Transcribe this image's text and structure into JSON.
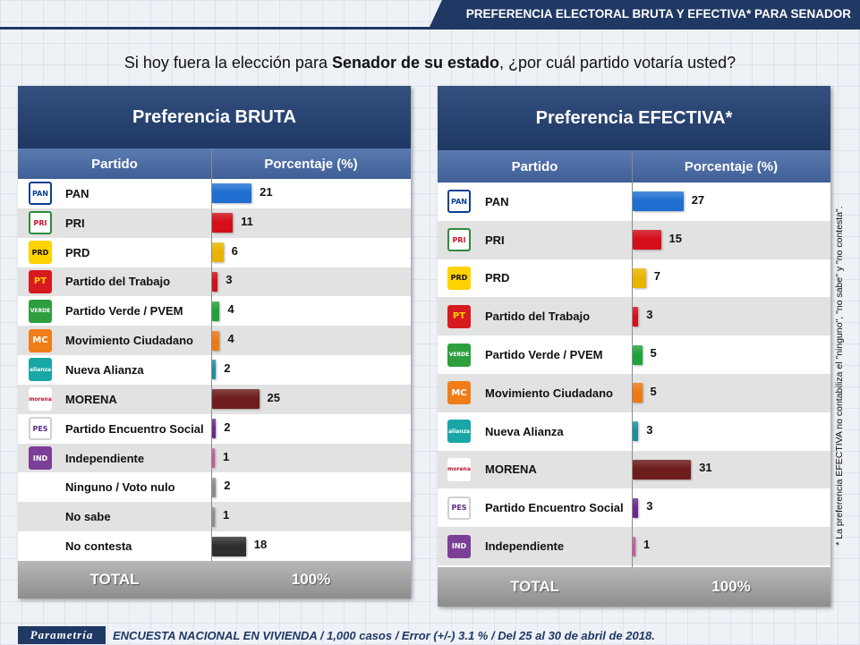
{
  "header": {
    "title": "PREFERENCIA ELECTORAL BRUTA Y EFECTIVA* PARA SENADOR"
  },
  "question": {
    "before": "Si hoy fuera la elección para ",
    "bold": "Senador de su estado",
    "after": ", ¿por cuál partido votaría usted?"
  },
  "columns": {
    "party": "Partido",
    "percent": "Porcentaje (%)"
  },
  "total": {
    "label": "TOTAL",
    "value": "100%"
  },
  "logos": {
    "PAN": {
      "text": "PAN",
      "bg": "#ffffff",
      "fg": "#0b3f91",
      "border": "#0b3f91"
    },
    "PRI": {
      "text": "PRI",
      "bg": "#ffffff",
      "fg": "#ce1126",
      "border": "#2e8b3a"
    },
    "PRD": {
      "text": "PRD",
      "bg": "#ffd200",
      "fg": "#111111",
      "border": "#ffd200"
    },
    "PT": {
      "text": "PT",
      "bg": "#d71920",
      "fg": "#ffd200",
      "border": "#d71920"
    },
    "PVEM": {
      "text": "VERDE",
      "bg": "#2e9e3f",
      "fg": "#ffffff",
      "border": "#2e9e3f"
    },
    "MC": {
      "text": "MC",
      "bg": "#f07d1a",
      "fg": "#ffffff",
      "border": "#f07d1a"
    },
    "NA": {
      "text": "alianza",
      "bg": "#1aa6a6",
      "fg": "#ffffff",
      "border": "#1aa6a6"
    },
    "MORENA": {
      "text": "morena",
      "bg": "#ffffff",
      "fg": "#b5142a",
      "border": "#ffffff"
    },
    "PES": {
      "text": "PES",
      "bg": "#ffffff",
      "fg": "#5b2c83",
      "border": "#d0d0d0"
    },
    "IND": {
      "text": "IND",
      "bg": "#7b3f98",
      "fg": "#ffffff",
      "border": "#7b3f98"
    }
  },
  "chart_data": [
    {
      "type": "bar",
      "title": "Preferencia BRUTA",
      "xlabel": "Partido",
      "ylabel": "Porcentaje (%)",
      "categories": [
        "PAN",
        "PRI",
        "PRD",
        "Partido del Trabajo",
        "Partido Verde / PVEM",
        "Movimiento Ciudadano",
        "Nueva Alianza",
        "MORENA",
        "Partido Encuentro Social",
        "Independiente",
        "Ninguno / Voto nulo",
        "No sabe",
        "No contesta"
      ],
      "logos": [
        "PAN",
        "PRI",
        "PRD",
        "PT",
        "PVEM",
        "MC",
        "NA",
        "MORENA",
        "PES",
        "IND",
        "",
        "",
        ""
      ],
      "values": [
        21,
        11,
        6,
        3,
        4,
        4,
        2,
        25,
        2,
        1,
        2,
        1,
        18
      ],
      "colors": [
        "#1f6fd1",
        "#d40f1a",
        "#e8b400",
        "#d40f1a",
        "#1ea33b",
        "#ef7a12",
        "#1c8fa0",
        "#6e1d1d",
        "#6a2a8a",
        "#c9569b",
        "#8c8c8c",
        "#8c8c8c",
        "#2e2e2e"
      ],
      "ylim": [
        0,
        31
      ]
    },
    {
      "type": "bar",
      "title": "Preferencia EFECTIVA*",
      "xlabel": "Partido",
      "ylabel": "Porcentaje (%)",
      "categories": [
        "PAN",
        "PRI",
        "PRD",
        "Partido del Trabajo",
        "Partido Verde / PVEM",
        "Movimiento Ciudadano",
        "Nueva Alianza",
        "MORENA",
        "Partido Encuentro Social",
        "Independiente"
      ],
      "logos": [
        "PAN",
        "PRI",
        "PRD",
        "PT",
        "PVEM",
        "MC",
        "NA",
        "MORENA",
        "PES",
        "IND"
      ],
      "values": [
        27,
        15,
        7,
        3,
        5,
        5,
        3,
        31,
        3,
        1
      ],
      "colors": [
        "#1f6fd1",
        "#d40f1a",
        "#e8b400",
        "#d40f1a",
        "#1ea33b",
        "#ef7a12",
        "#1c8fa0",
        "#6e1d1d",
        "#6a2a8a",
        "#c9569b"
      ],
      "ylim": [
        0,
        31
      ]
    }
  ],
  "side_note": "* La preferencia EFECTIVA no contabiliza el \"ninguno\", \"no sabe\" y \"no contesta\".",
  "footer": {
    "brand": "Parametría",
    "text": "ENCUESTA NACIONAL EN VIVIENDA / 1,000 casos / Error (+/-) 3.1 % / Del 25 al 30 de abril de 2018."
  }
}
